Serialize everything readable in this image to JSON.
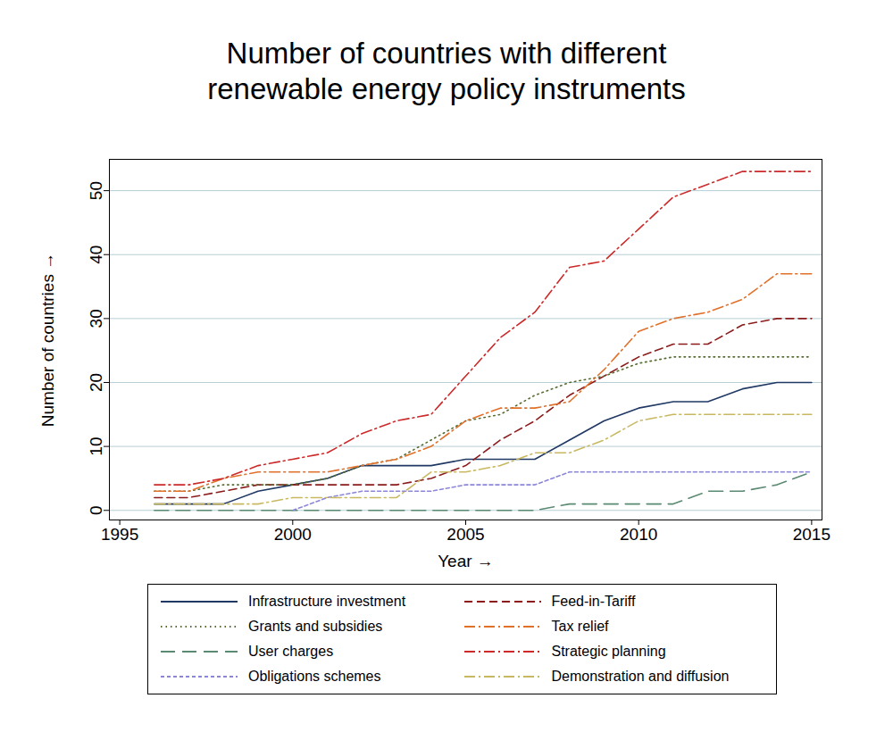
{
  "chart_data": {
    "type": "line",
    "title": "Number of countries with different renewable energy policy instruments",
    "x_label": "Year",
    "y_label": "Number of countries",
    "x": [
      1996,
      1997,
      1998,
      1999,
      2000,
      2001,
      2002,
      2003,
      2004,
      2005,
      2006,
      2007,
      2008,
      2009,
      2010,
      2011,
      2012,
      2013,
      2014,
      2015
    ],
    "xlim": [
      1994.7,
      2015.3
    ],
    "xticks": [
      1995,
      2000,
      2005,
      2010,
      2015
    ],
    "ylim": [
      -1.5,
      54.9
    ],
    "yticks": [
      0,
      10,
      20,
      30,
      40,
      50
    ],
    "grid": true,
    "legend": "bottom",
    "series": [
      {
        "name": "Infrastructure investment",
        "color": "#1f3864",
        "line_style": "solid",
        "values": [
          1,
          1,
          1,
          3,
          4,
          5,
          7,
          7,
          7,
          8,
          8,
          8,
          11,
          14,
          16,
          17,
          17,
          19,
          20,
          20
        ]
      },
      {
        "name": "Feed-in-Tariff",
        "color": "#8b1c1c",
        "line_style": "dashed",
        "values": [
          2,
          2,
          3,
          4,
          4,
          4,
          4,
          4,
          5,
          7,
          11,
          14,
          18,
          21,
          24,
          26,
          26,
          29,
          30,
          30
        ]
      },
      {
        "name": "Grants and subsidies",
        "color": "#556b2f",
        "line_style": "dotted",
        "values": [
          3,
          3,
          4,
          4,
          4,
          5,
          7,
          8,
          11,
          14,
          15,
          18,
          20,
          21,
          23,
          24,
          24,
          24,
          24,
          24
        ]
      },
      {
        "name": "Tax relief",
        "color": "#e0702a",
        "line_style": "dash-dot",
        "values": [
          3,
          3,
          5,
          6,
          6,
          6,
          7,
          8,
          10,
          14,
          16,
          16,
          17,
          22,
          28,
          30,
          31,
          33,
          37,
          37
        ]
      },
      {
        "name": "User charges",
        "color": "#5b8a72",
        "line_style": "long-dash",
        "values": [
          0,
          0,
          0,
          0,
          0,
          0,
          0,
          0,
          0,
          0,
          0,
          0,
          1,
          1,
          1,
          1,
          3,
          3,
          4,
          6
        ]
      },
      {
        "name": "Strategic planning",
        "color": "#cc2a2a",
        "line_style": "dash-dot",
        "values": [
          4,
          4,
          5,
          7,
          8,
          9,
          12,
          14,
          15,
          21,
          27,
          31,
          38,
          39,
          44,
          49,
          51,
          53,
          53,
          53
        ]
      },
      {
        "name": "Obligations schemes",
        "color": "#8c86d8",
        "line_style": "short-dash",
        "values": [
          null,
          null,
          null,
          null,
          0,
          2,
          3,
          3,
          3,
          4,
          4,
          4,
          6,
          6,
          6,
          6,
          6,
          6,
          6,
          6
        ]
      },
      {
        "name": "Demonstration and diffusion",
        "color": "#c9b862",
        "line_style": "dash-dot",
        "values": [
          1,
          1,
          1,
          1,
          2,
          2,
          2,
          2,
          6,
          6,
          7,
          9,
          9,
          11,
          14,
          15,
          15,
          15,
          15,
          15
        ]
      }
    ]
  }
}
